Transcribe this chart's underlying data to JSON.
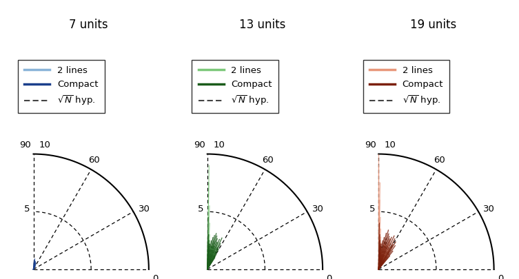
{
  "titles": [
    "7 units",
    "13 units",
    "19 units"
  ],
  "colors_light": [
    "#8ab4d8",
    "#7cc87a",
    "#e8967a"
  ],
  "colors_dark": [
    "#1a3f8c",
    "#1a5c1a",
    "#7b1f0a"
  ],
  "r_max": 10,
  "panel_angles_2lines_7": [
    85,
    83,
    81,
    79,
    77,
    75,
    73,
    71,
    69,
    67,
    65,
    63,
    61
  ],
  "panel_radii_2lines_7": [
    0.6,
    0.7,
    0.8,
    0.7,
    0.6,
    0.5,
    0.6,
    0.5,
    0.4,
    0.5,
    0.4,
    0.3,
    0.3
  ],
  "panel_angles_compact_7": [
    85,
    83,
    81,
    79,
    77,
    75,
    73,
    71,
    69,
    67,
    65,
    63
  ],
  "panel_radii_compact_7": [
    0.8,
    0.9,
    0.7,
    0.6,
    0.7,
    0.6,
    0.5,
    0.6,
    0.5,
    0.4,
    0.3,
    0.3
  ],
  "panel_angles_sqrt_7": [
    85,
    83,
    81,
    79,
    77,
    75,
    73,
    71,
    69,
    67,
    65
  ],
  "panel_radii_sqrt_7": [
    0.7,
    0.8,
    0.6,
    0.5,
    0.6,
    0.5,
    0.4,
    0.5,
    0.4,
    0.3,
    0.2
  ],
  "panel_angles_2lines_13": [
    89,
    89,
    88,
    87,
    86,
    85,
    84,
    83,
    82,
    81,
    80,
    78,
    76,
    74,
    72,
    70,
    68,
    66,
    64,
    62,
    60
  ],
  "panel_radii_2lines_13": [
    9.0,
    7.5,
    5.5,
    4.0,
    3.0,
    2.5,
    2.0,
    1.8,
    1.5,
    1.8,
    2.0,
    2.2,
    2.5,
    2.0,
    1.8,
    2.0,
    2.5,
    2.0,
    1.5,
    1.2,
    1.0
  ],
  "panel_angles_compact_13": [
    89,
    88,
    87,
    86,
    85,
    84,
    82,
    80,
    78,
    76,
    74,
    72,
    70,
    68,
    65,
    63,
    61,
    59,
    57
  ],
  "panel_radii_compact_13": [
    4.5,
    3.0,
    2.5,
    2.2,
    2.0,
    2.2,
    2.5,
    2.8,
    3.0,
    3.2,
    3.0,
    2.8,
    2.5,
    2.8,
    3.0,
    2.5,
    2.0,
    1.5,
    1.2
  ],
  "panel_angles_sqrt_13": [
    89,
    88,
    87,
    86,
    85,
    84,
    82,
    80,
    78,
    76,
    74,
    72,
    70,
    68,
    65,
    63,
    61
  ],
  "panel_radii_sqrt_13": [
    3.6,
    2.2,
    1.8,
    1.6,
    1.4,
    1.6,
    1.8,
    2.0,
    2.2,
    2.5,
    2.2,
    1.8,
    1.6,
    1.8,
    2.2,
    2.0,
    1.4
  ],
  "panel_angles_2lines_19": [
    90,
    90,
    89,
    89,
    88,
    87,
    86,
    85,
    84,
    83,
    82,
    80,
    78,
    76,
    74,
    72,
    70,
    68,
    66,
    64,
    62,
    60,
    58,
    56,
    54
  ],
  "panel_radii_2lines_19": [
    10.0,
    9.0,
    7.5,
    6.0,
    4.5,
    3.5,
    2.8,
    2.3,
    2.0,
    1.8,
    1.6,
    1.8,
    2.2,
    2.4,
    2.2,
    2.0,
    2.2,
    2.8,
    2.5,
    2.0,
    2.2,
    1.8,
    2.0,
    1.5,
    1.2
  ],
  "panel_angles_compact_19": [
    89,
    88,
    87,
    86,
    85,
    84,
    82,
    80,
    78,
    76,
    74,
    72,
    70,
    68,
    65,
    62,
    60,
    58,
    55,
    52,
    50
  ],
  "panel_radii_compact_19": [
    4.0,
    3.0,
    2.5,
    2.2,
    2.0,
    2.2,
    2.5,
    2.8,
    3.2,
    3.5,
    3.2,
    3.0,
    2.8,
    3.0,
    3.2,
    3.0,
    2.5,
    2.8,
    2.5,
    2.0,
    1.5
  ],
  "panel_angles_sqrt_19": [
    90,
    89,
    88,
    87,
    86,
    85,
    84,
    82,
    80,
    78,
    76,
    74,
    72,
    70,
    68,
    65,
    62,
    60,
    58,
    55
  ],
  "panel_radii_sqrt_19": [
    4.4,
    3.0,
    2.2,
    1.8,
    1.6,
    1.4,
    1.8,
    2.0,
    2.2,
    2.5,
    2.8,
    2.5,
    2.2,
    2.0,
    2.2,
    2.5,
    2.2,
    1.8,
    2.0,
    1.6
  ]
}
